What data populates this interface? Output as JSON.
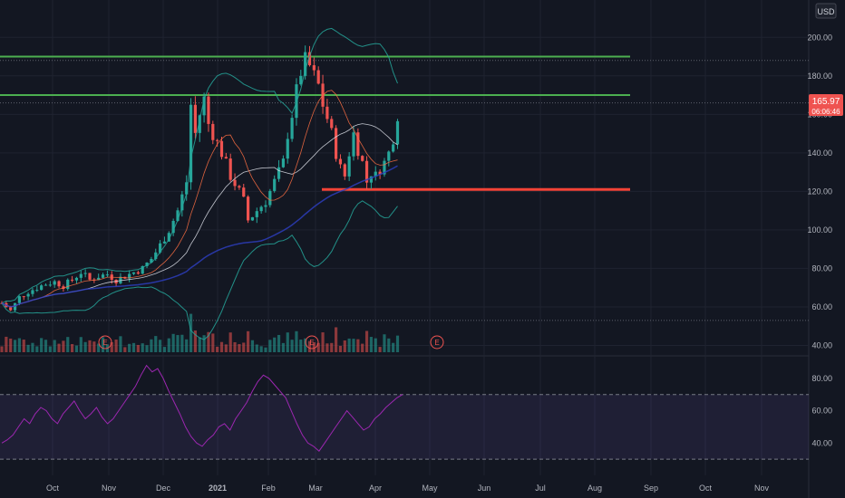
{
  "currency_label": "USD",
  "last_price": {
    "value": "165.97",
    "countdown": "06:06:46"
  },
  "colors": {
    "background": "#131722",
    "grid": "#1f2330",
    "up": "#26a69a",
    "down": "#ef5350",
    "resistance": "#4caf50",
    "support": "#f44336",
    "bollinger": "#26a69a",
    "ma_long": "#2d3dbb",
    "rsi_line": "#9c27b0",
    "rsi_band": "#7e57c2",
    "axis_text": "#b2b5be"
  },
  "chart_data": {
    "type": "candlestick",
    "y_axis": {
      "ticks": [
        "200.00",
        "180.00",
        "160.00",
        "140.00",
        "120.00",
        "100.00",
        "80.00",
        "60.00",
        "40.00"
      ],
      "range": [
        36,
        210
      ]
    },
    "x_axis": {
      "ticks": [
        "Oct",
        "Nov",
        "Dec",
        "2021",
        "Feb",
        "Mar",
        "Apr",
        "May",
        "Jun",
        "Jul",
        "Aug",
        "Sep",
        "Oct",
        "Nov"
      ]
    },
    "horizontal_levels": [
      {
        "name": "top-resistance",
        "price": 190,
        "color": "#4caf50"
      },
      {
        "name": "resistance",
        "price": 170,
        "color": "#4caf50"
      },
      {
        "name": "support",
        "price": 121,
        "color": "#f44336"
      }
    ],
    "dotted_levels": [
      188,
      165.97,
      53
    ],
    "price_path": [
      [
        0,
        62
      ],
      [
        2,
        58
      ],
      [
        4,
        65
      ],
      [
        6,
        68
      ],
      [
        8,
        70
      ],
      [
        10,
        72
      ],
      [
        12,
        73
      ],
      [
        14,
        71
      ],
      [
        16,
        74
      ],
      [
        18,
        78
      ],
      [
        20,
        74
      ],
      [
        22,
        76
      ],
      [
        24,
        77
      ],
      [
        26,
        74
      ],
      [
        28,
        76
      ],
      [
        30,
        78
      ],
      [
        32,
        80
      ],
      [
        34,
        85
      ],
      [
        36,
        92
      ],
      [
        38,
        100
      ],
      [
        40,
        110
      ],
      [
        42,
        125
      ],
      [
        43,
        165
      ],
      [
        44,
        150
      ],
      [
        45,
        160
      ],
      [
        46,
        168
      ],
      [
        47,
        155
      ],
      [
        48,
        150
      ],
      [
        50,
        140
      ],
      [
        52,
        128
      ],
      [
        54,
        120
      ],
      [
        55,
        115
      ],
      [
        56,
        105
      ],
      [
        58,
        110
      ],
      [
        60,
        115
      ],
      [
        62,
        125
      ],
      [
        64,
        135
      ],
      [
        65,
        150
      ],
      [
        66,
        160
      ],
      [
        67,
        172
      ],
      [
        68,
        182
      ],
      [
        69,
        188
      ],
      [
        70,
        185
      ],
      [
        71,
        180
      ],
      [
        72,
        175
      ],
      [
        73,
        165
      ],
      [
        74,
        158
      ],
      [
        75,
        150
      ],
      [
        76,
        140
      ],
      [
        77,
        132
      ],
      [
        78,
        128
      ],
      [
        79,
        140
      ],
      [
        80,
        150
      ],
      [
        81,
        142
      ],
      [
        82,
        135
      ],
      [
        83,
        125
      ],
      [
        84,
        130
      ],
      [
        85,
        128
      ],
      [
        86,
        132
      ],
      [
        87,
        135
      ],
      [
        88,
        140
      ],
      [
        89,
        148
      ],
      [
        90,
        160
      ],
      [
        91,
        166
      ]
    ],
    "volume_events": [
      "E",
      "E",
      "E"
    ],
    "rsi": {
      "ticks": [
        "80.00",
        "60.00",
        "40.00"
      ],
      "overbought": 70,
      "oversold": 30,
      "values": [
        40,
        42,
        45,
        50,
        55,
        52,
        58,
        62,
        60,
        55,
        52,
        58,
        62,
        66,
        60,
        55,
        58,
        62,
        56,
        52,
        55,
        60,
        65,
        70,
        75,
        82,
        88,
        84,
        86,
        80,
        72,
        65,
        58,
        50,
        44,
        40,
        38,
        42,
        45,
        50,
        52,
        48,
        55,
        60,
        65,
        72,
        78,
        82,
        80,
        76,
        72,
        68,
        60,
        52,
        45,
        40,
        38,
        35,
        40,
        45,
        50,
        55,
        60,
        56,
        52,
        48,
        50,
        55,
        58,
        62,
        65,
        68,
        70
      ]
    }
  }
}
